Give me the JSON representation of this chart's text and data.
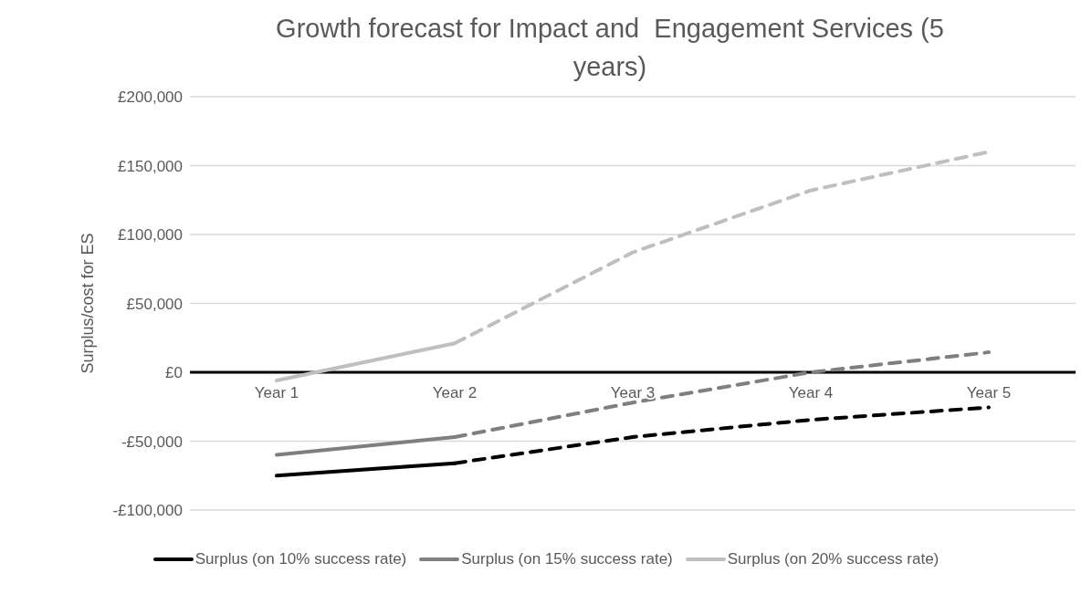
{
  "chart_data": {
    "type": "line",
    "title": "Growth forecast for Impact and  Engagement Services (5 years)",
    "ylabel": "Surplus/cost for ES",
    "categories": [
      "Year 1",
      "Year 2",
      "Year 3",
      "Year 4",
      "Year 5"
    ],
    "series": [
      {
        "name": "Surplus (on 10% success rate)",
        "color": "#000000",
        "line_style": "solid",
        "values": [
          -75000,
          -66000,
          null,
          null,
          null
        ]
      },
      {
        "name": "Surplus (on 15% success rate)",
        "color": "#7f7f7f",
        "line_style": "solid",
        "values": [
          -60000,
          -47000,
          null,
          null,
          null
        ]
      },
      {
        "name": "Surplus (on 20% success rate)",
        "color": "#bfbfbf",
        "line_style": "solid",
        "values": [
          -6000,
          21000,
          null,
          null,
          null
        ]
      },
      {
        "color": "#000000",
        "line_style": "dashed",
        "values": [
          null,
          -66000,
          -47000,
          -34500,
          -25500
        ]
      },
      {
        "color": "#7f7f7f",
        "line_style": "dashed",
        "values": [
          null,
          -47000,
          -22000,
          0,
          14500
        ]
      },
      {
        "color": "#bfbfbf",
        "line_style": "dashed",
        "values": [
          null,
          21000,
          87000,
          132000,
          160000
        ]
      }
    ],
    "ylim": [
      -100000,
      200000
    ],
    "yticks": [
      {
        "value": -100000,
        "label": "-£100,000"
      },
      {
        "value": -50000,
        "label": "-£50,000"
      },
      {
        "value": 0,
        "label": "£0"
      },
      {
        "value": 50000,
        "label": "£50,000"
      },
      {
        "value": 100000,
        "label": "£100,000"
      },
      {
        "value": 150000,
        "label": "£150,000"
      },
      {
        "value": 200000,
        "label": "£200,000"
      }
    ],
    "grid": "y",
    "legend": "bottom",
    "marker": "none"
  }
}
